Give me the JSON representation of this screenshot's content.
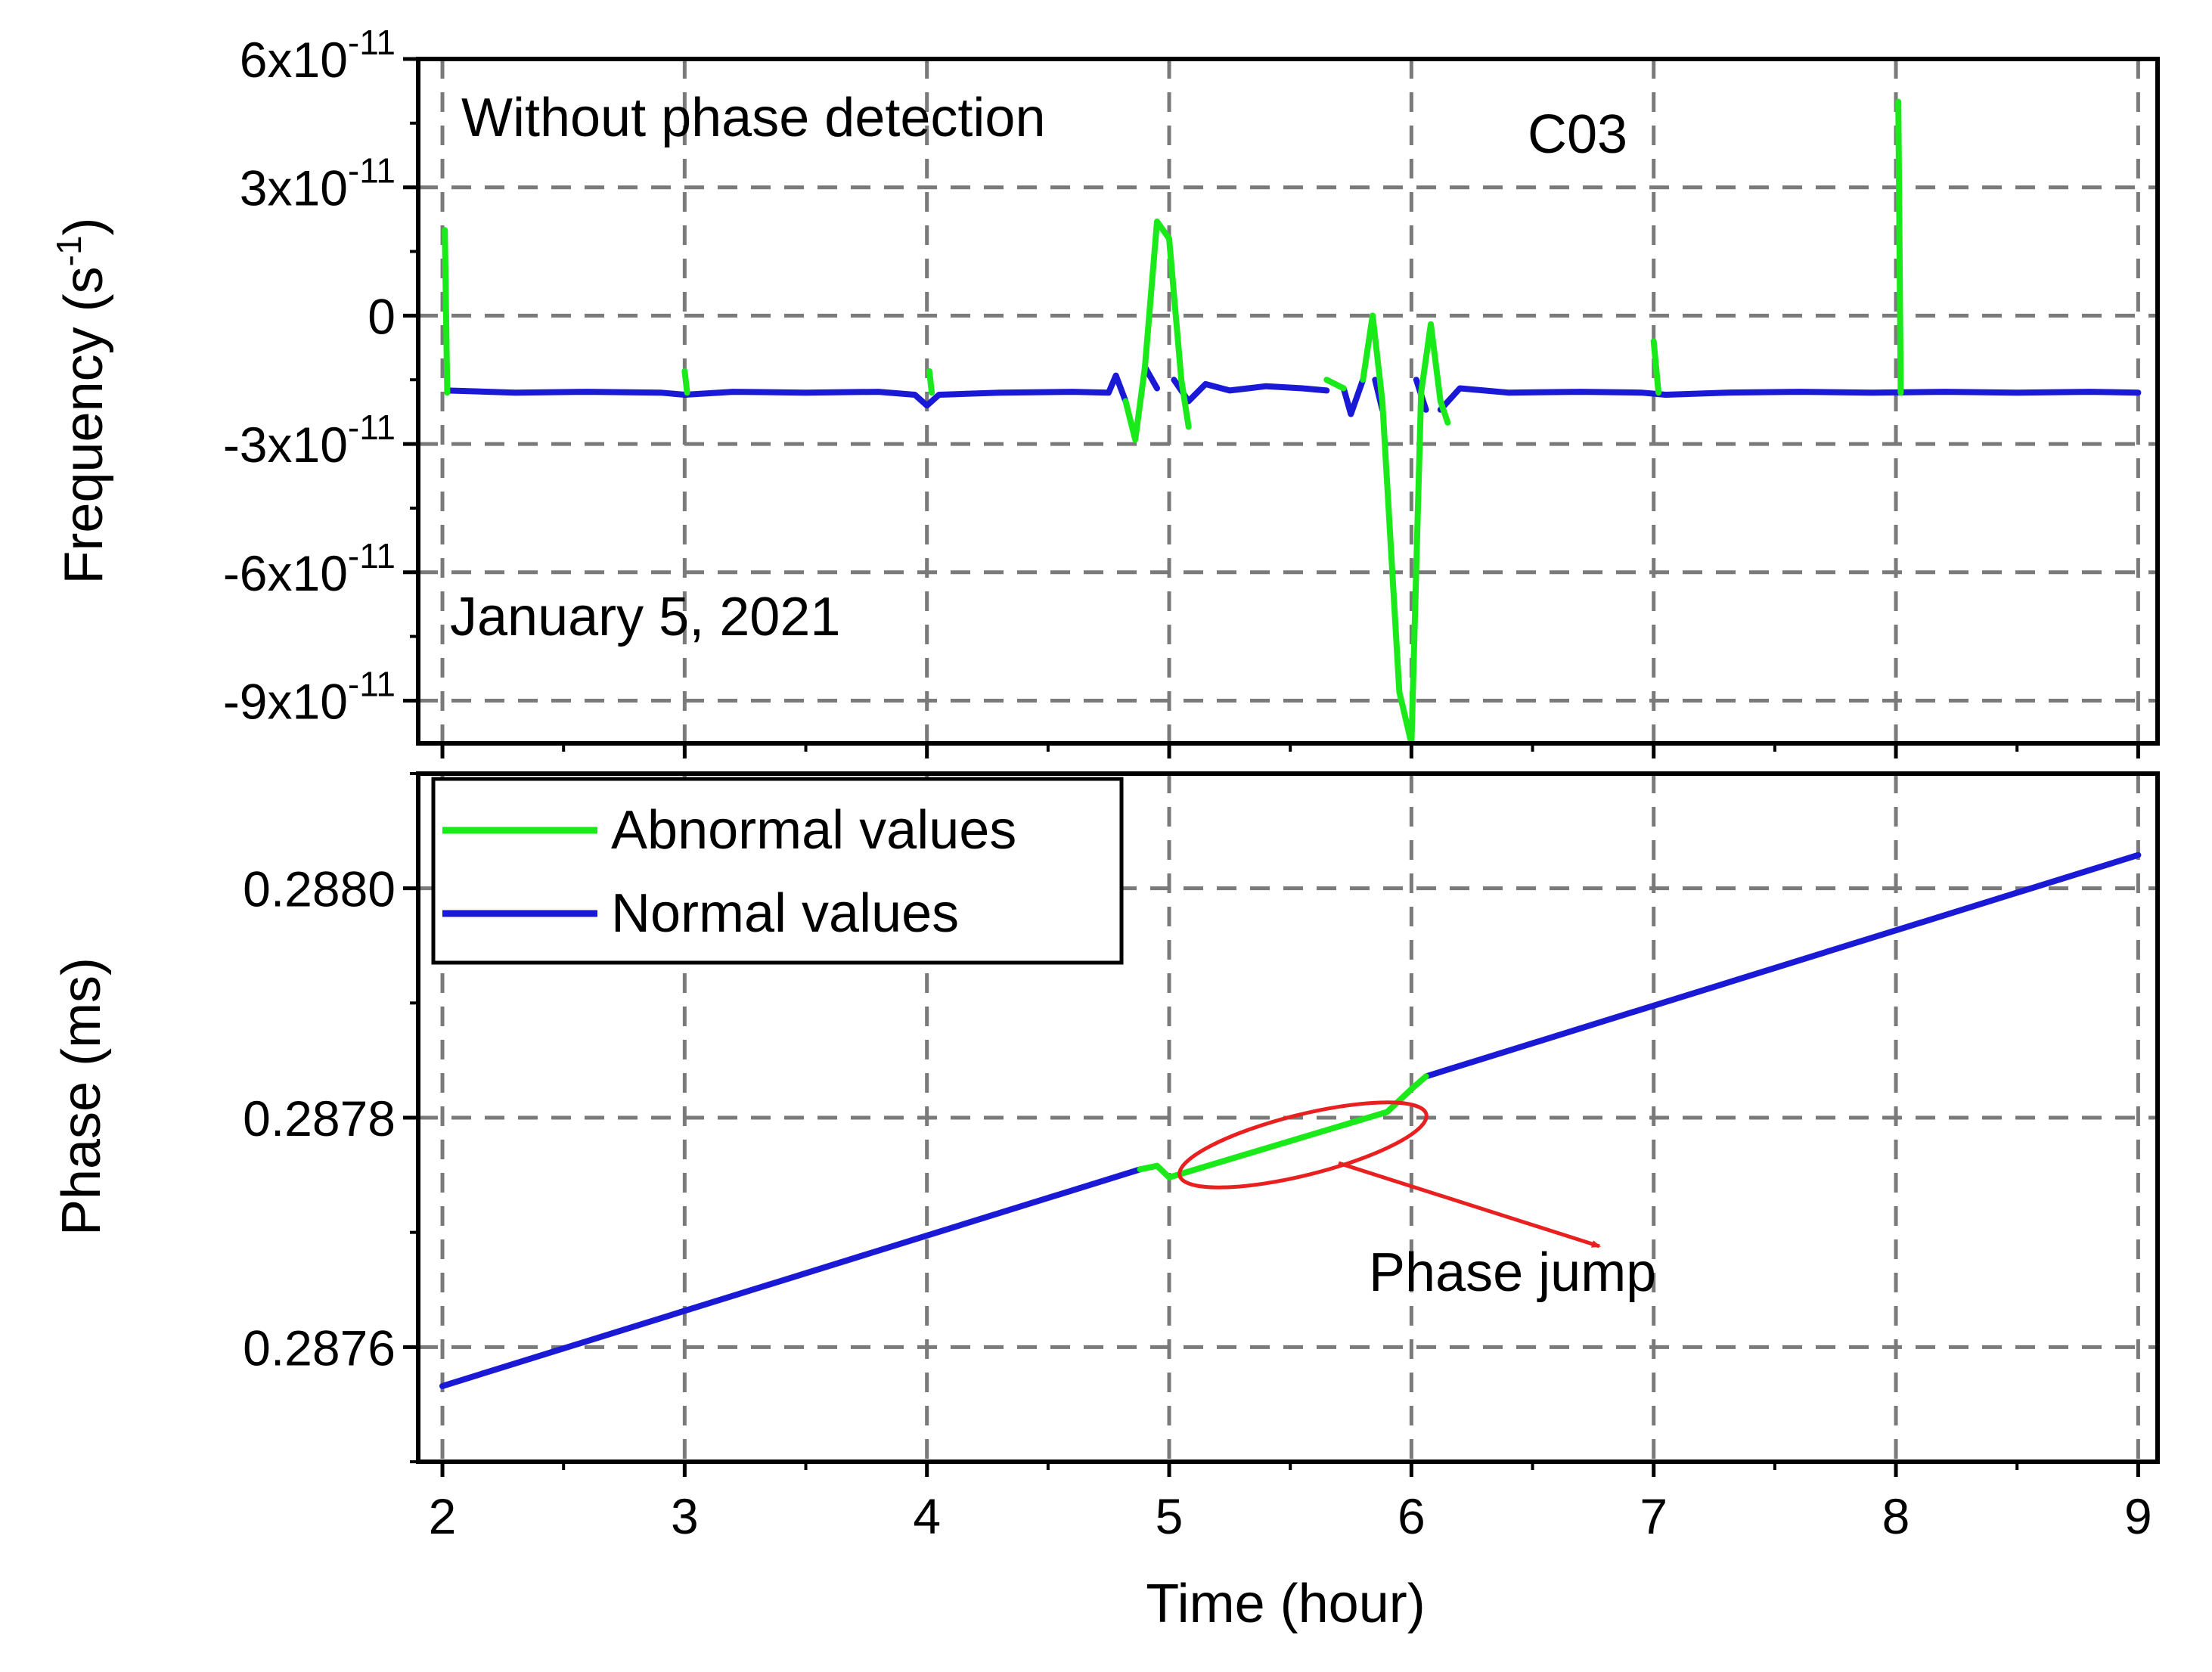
{
  "chart_data": [
    {
      "type": "line",
      "panel": "top",
      "ylabel_main": "Frequency",
      "ylabel_unit_base": "(s",
      "ylabel_unit_exp": "-1",
      "ylabel_unit_close": ")",
      "xlim": [
        1.9,
        9.08
      ],
      "ylim": [
        -1e-10,
        6e-11
      ],
      "xticks": [
        2,
        3,
        4,
        5,
        6,
        7,
        8,
        9
      ],
      "yticks": [
        {
          "value": 6e-11,
          "mant": "6x10",
          "exp": "-11"
        },
        {
          "value": 3e-11,
          "mant": "3x10",
          "exp": "-11"
        },
        {
          "value": 0,
          "mant": "0",
          "exp": ""
        },
        {
          "value": -3e-11,
          "mant": "-3x10",
          "exp": "-11"
        },
        {
          "value": -6e-11,
          "mant": "-6x10",
          "exp": "-11"
        },
        {
          "value": -9e-11,
          "mant": "-9x10",
          "exp": "-11"
        }
      ],
      "grid": true,
      "annotations": {
        "method": "Without phase detection",
        "satellite": "C03",
        "date": "January 5, 2021"
      },
      "series": [
        {
          "name": "Normal values",
          "color": "#1a1ad6",
          "segments": [
            [
              [
                2.02,
                -1.75e-11
              ],
              [
                2.3,
                -1.8e-11
              ],
              [
                2.6,
                -1.78e-11
              ],
              [
                2.9,
                -1.8e-11
              ],
              [
                3.0,
                -1.85e-11
              ],
              [
                3.2,
                -1.78e-11
              ],
              [
                3.5,
                -1.8e-11
              ],
              [
                3.8,
                -1.78e-11
              ],
              [
                3.95,
                -1.85e-11
              ],
              [
                4.0,
                -2.1e-11
              ],
              [
                4.05,
                -1.85e-11
              ],
              [
                4.3,
                -1.8e-11
              ],
              [
                4.6,
                -1.78e-11
              ],
              [
                4.75,
                -1.8e-11
              ],
              [
                4.78,
                -1.4e-11
              ],
              [
                4.82,
                -2e-11
              ]
            ],
            [
              [
                4.9,
                -1.2e-11
              ],
              [
                4.95,
                -1.7e-11
              ]
            ],
            [
              [
                5.02,
                -1.5e-11
              ],
              [
                5.08,
                -2e-11
              ],
              [
                5.15,
                -1.6e-11
              ],
              [
                5.25,
                -1.75e-11
              ],
              [
                5.4,
                -1.65e-11
              ],
              [
                5.55,
                -1.7e-11
              ],
              [
                5.65,
                -1.75e-11
              ]
            ],
            [
              [
                5.72,
                -1.7e-11
              ],
              [
                5.75,
                -2.3e-11
              ],
              [
                5.8,
                -1.5e-11
              ]
            ],
            [
              [
                5.85,
                -1.5e-11
              ],
              [
                5.88,
                -2.2e-11
              ]
            ],
            [
              [
                6.02,
                -1.5e-11
              ],
              [
                6.06,
                -2.2e-11
              ]
            ],
            [
              [
                6.12,
                -2.2e-11
              ],
              [
                6.2,
                -1.7e-11
              ],
              [
                6.4,
                -1.8e-11
              ],
              [
                6.7,
                -1.78e-11
              ],
              [
                6.95,
                -1.8e-11
              ],
              [
                7.05,
                -1.85e-11
              ],
              [
                7.3,
                -1.8e-11
              ],
              [
                7.6,
                -1.78e-11
              ],
              [
                7.9,
                -1.8e-11
              ],
              [
                8.2,
                -1.78e-11
              ],
              [
                8.5,
                -1.8e-11
              ],
              [
                8.8,
                -1.78e-11
              ],
              [
                9.0,
                -1.8e-11
              ]
            ]
          ]
        },
        {
          "name": "Abnormal values",
          "color": "#1aea1a",
          "segments": [
            [
              [
                2.01,
                2e-11
              ],
              [
                2.02,
                -1.8e-11
              ]
            ],
            [
              [
                3.0,
                -1.3e-11
              ],
              [
                3.01,
                -1.8e-11
              ]
            ],
            [
              [
                4.01,
                -1.3e-11
              ],
              [
                4.02,
                -1.8e-11
              ]
            ],
            [
              [
                4.82,
                -2e-11
              ],
              [
                4.86,
                -2.9e-11
              ],
              [
                4.9,
                -1.2e-11
              ],
              [
                4.95,
                2.2e-11
              ],
              [
                5.0,
                1.8e-11
              ],
              [
                5.05,
                -1.5e-11
              ],
              [
                5.08,
                -2.6e-11
              ]
            ],
            [
              [
                5.65,
                -1.5e-11
              ],
              [
                5.72,
                -1.7e-11
              ]
            ],
            [
              [
                5.8,
                -1.5e-11
              ],
              [
                5.84,
                0.0
              ],
              [
                5.88,
                -2e-11
              ],
              [
                5.95,
                -8.8e-11
              ],
              [
                6.0,
                -1e-10
              ],
              [
                6.04,
                -1.8e-11
              ],
              [
                6.08,
                -2e-12
              ],
              [
                6.12,
                -2e-11
              ],
              [
                6.15,
                -2.5e-11
              ]
            ],
            [
              [
                7.0,
                -6e-12
              ],
              [
                7.02,
                -1.8e-11
              ]
            ],
            [
              [
                8.01,
                5e-11
              ],
              [
                8.02,
                -1.8e-11
              ]
            ]
          ]
        }
      ]
    },
    {
      "type": "line",
      "panel": "bottom",
      "xlabel": "Time (hour)",
      "ylabel": "Phase (ms)",
      "xlim": [
        1.9,
        9.08
      ],
      "ylim": [
        0.2875,
        0.2881
      ],
      "xticks": [
        2,
        3,
        4,
        5,
        6,
        7,
        8,
        9
      ],
      "xtick_labels": [
        "2",
        "3",
        "4",
        "5",
        "6",
        "7",
        "8",
        "9"
      ],
      "yticks": [
        0.2876,
        0.2878,
        0.288
      ],
      "ytick_labels": [
        "0.2876",
        "0.2878",
        "0.2880"
      ],
      "grid": true,
      "legend": {
        "position": "top-left",
        "entries": [
          {
            "label": "Abnormal values",
            "color": "#1aea1a"
          },
          {
            "label": "Normal values",
            "color": "#1a1ad6"
          }
        ]
      },
      "annotations": {
        "callout": "Phase jump"
      },
      "series": [
        {
          "name": "Normal values",
          "color": "#1a1ad6",
          "segments": [
            [
              [
                2.0,
                0.287566
              ],
              [
                4.88,
                0.287755
              ]
            ],
            [
              [
                6.06,
                0.287836
              ],
              [
                9.0,
                0.288029
              ]
            ]
          ]
        },
        {
          "name": "Abnormal values",
          "color": "#1aea1a",
          "segments": [
            [
              [
                4.88,
                0.287755
              ],
              [
                4.95,
                0.287758
              ],
              [
                5.0,
                0.287748
              ],
              [
                5.9,
                0.287805
              ],
              [
                6.0,
                0.287825
              ],
              [
                6.06,
                0.287836
              ]
            ]
          ]
        }
      ]
    }
  ]
}
